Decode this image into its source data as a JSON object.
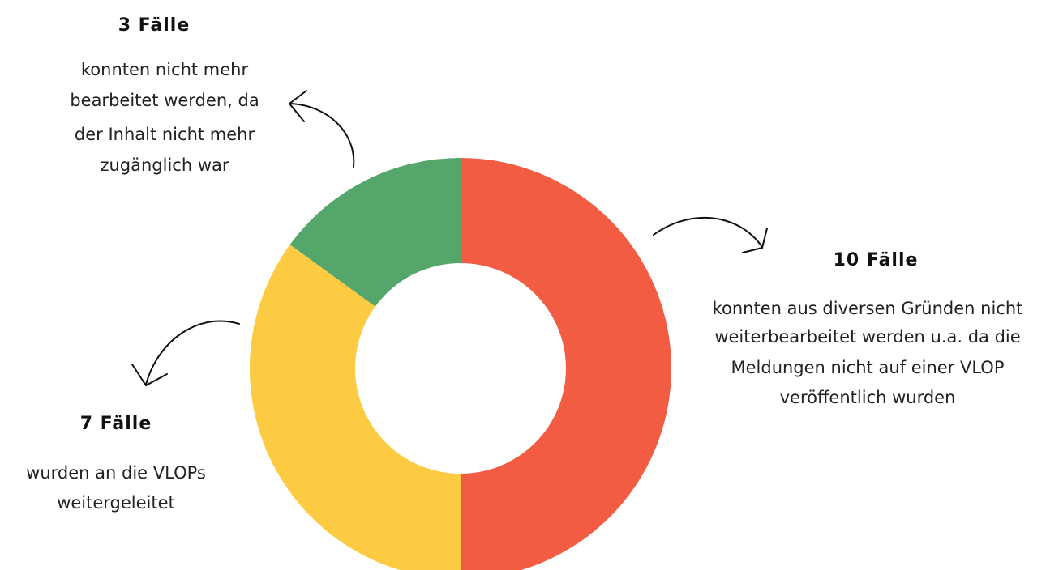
{
  "chart_data": {
    "type": "pie",
    "values": [
      10,
      7,
      3
    ],
    "value_labels": [
      "10 Fälle",
      "7 Fälle",
      "3 Fälle"
    ],
    "colors": [
      "#f25c43",
      "#fccb42",
      "#55a66b"
    ],
    "descriptions": [
      [
        "konnten aus diversen Gründen nicht",
        "weiterbearbeitet werden u.a. da die",
        "Meldungen nicht auf einer VLOP",
        "veröffentlich wurden"
      ],
      [
        "wurden an die VLOPs",
        "weitergeleitet"
      ],
      [
        "konnten nicht mehr",
        "bearbeitet werden, da",
        "der Inhalt nicht mehr",
        "zugänglich war"
      ]
    ]
  }
}
